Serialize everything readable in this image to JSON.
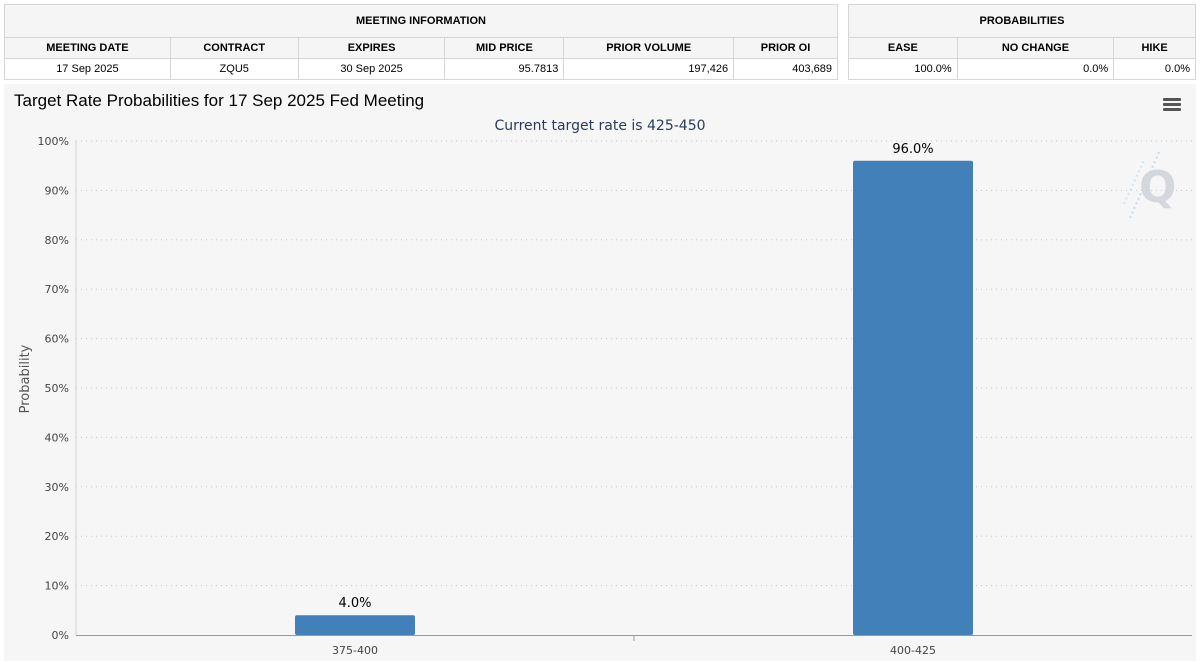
{
  "meeting_info": {
    "title": "MEETING INFORMATION",
    "headers": [
      "MEETING DATE",
      "CONTRACT",
      "EXPIRES",
      "MID PRICE",
      "PRIOR VOLUME",
      "PRIOR OI"
    ],
    "row": [
      "17 Sep 2025",
      "ZQU5",
      "30 Sep 2025",
      "95.7813",
      "197,426",
      "403,689"
    ]
  },
  "probabilities": {
    "title": "PROBABILITIES",
    "headers": [
      "EASE",
      "NO CHANGE",
      "HIKE"
    ],
    "row": [
      "100.0%",
      "0.0%",
      "0.0%"
    ]
  },
  "chart_data": {
    "type": "bar",
    "title": "Target Rate Probabilities for 17 Sep 2025 Fed Meeting",
    "subtitle": "Current target rate is 425-450",
    "categories": [
      "375-400",
      "400-425"
    ],
    "values": [
      4.0,
      96.0
    ],
    "data_labels": [
      "4.0%",
      "96.0%"
    ],
    "xlabel": "",
    "ylabel": "Probability",
    "ylim": [
      0,
      100
    ],
    "yticks": [
      "0%",
      "10%",
      "20%",
      "30%",
      "40%",
      "50%",
      "60%",
      "70%",
      "80%",
      "90%",
      "100%"
    ],
    "grid": true,
    "bar_color": "#4180b8",
    "grid_color": "#c8c8c8",
    "legend": "none"
  }
}
